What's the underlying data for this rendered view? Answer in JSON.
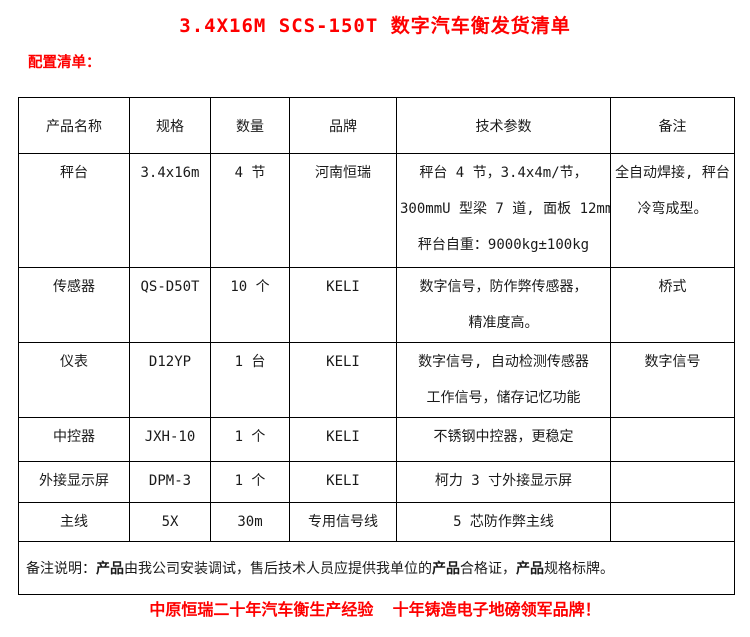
{
  "page": {
    "title": "3.4X16M SCS-150T 数字汽车衡发货清单",
    "subtitle": "配置清单：",
    "footer": "中原恒瑞二十年汽车衡生产经验  十年铸造电子地磅领军品牌！"
  },
  "colors": {
    "heading_red": "#fe0000",
    "text_black": "#1a1a1a",
    "border_black": "#000000"
  },
  "table": {
    "headers": [
      "产品名称",
      "规格",
      "数量",
      "品牌",
      "技术参数",
      "备注"
    ],
    "rows": [
      {
        "name": "秤台",
        "spec": "3.4x16m",
        "qty": "4 节",
        "brand": "河南恒瑞",
        "params": [
          "秤台 4 节，3.4x4m/节，",
          "300mmU 型梁 7 道, 面板 12mm",
          "秤台自重：9000kg±100kg"
        ],
        "note": "全自动焊接, 秤台冷弯成型。"
      },
      {
        "name": "传感器",
        "spec": "QS-D50T",
        "qty": "10 个",
        "brand": "KELI",
        "params": [
          "数字信号，防作弊传感器，",
          "精准度高。"
        ],
        "note": "桥式"
      },
      {
        "name": "仪表",
        "spec": "D12YP",
        "qty": "1 台",
        "brand": "KELI",
        "params": [
          "数字信号, 自动检测传感器",
          "工作信号，储存记忆功能"
        ],
        "note": "数字信号"
      },
      {
        "name": "中控器",
        "spec": "JXH-10",
        "qty": "1 个",
        "brand": "KELI",
        "params": [
          "不锈钢中控器，更稳定"
        ],
        "note": ""
      },
      {
        "name": "外接显示屏",
        "spec": "DPM-3",
        "qty": "1 个",
        "brand": "KELI",
        "params": [
          "柯力 3 寸外接显示屏"
        ],
        "note": ""
      },
      {
        "name": "主线",
        "spec": "5X",
        "qty": "30m",
        "brand": "专用信号线",
        "params": [
          "5 芯防作弊主线"
        ],
        "note": ""
      }
    ],
    "remark_segments": [
      {
        "text": "备注说明：",
        "bold": false
      },
      {
        "text": "产品",
        "bold": true
      },
      {
        "text": "由我公司安装调试，售后技术人员应提供我单位的",
        "bold": false
      },
      {
        "text": "产品",
        "bold": true
      },
      {
        "text": "合格证，",
        "bold": false
      },
      {
        "text": "产品",
        "bold": true
      },
      {
        "text": "规格标牌。",
        "bold": false
      }
    ]
  }
}
